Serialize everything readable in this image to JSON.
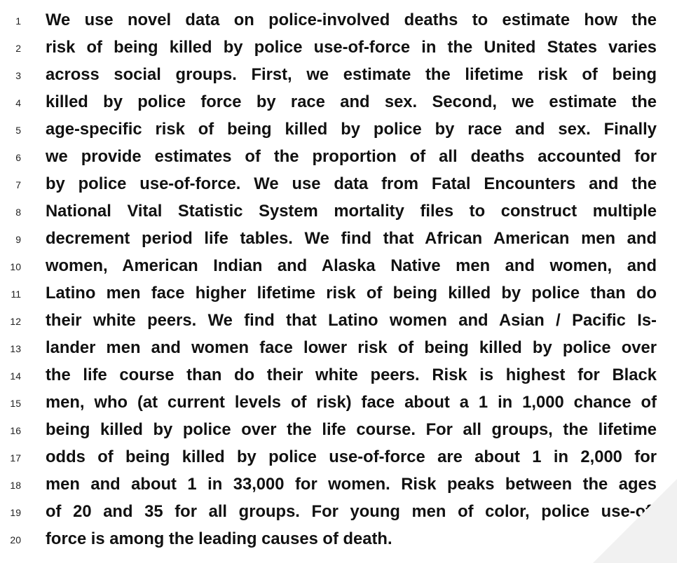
{
  "abstract": {
    "lines": [
      {
        "number": "1",
        "text": "We use novel data on police-involved deaths to estimate how the"
      },
      {
        "number": "2",
        "text": "risk of being killed by police use-of-force in the United States varies"
      },
      {
        "number": "3",
        "text": "across social groups.  First, we estimate the lifetime risk of being"
      },
      {
        "number": "4",
        "text": "killed by police force by race and sex.  Second, we estimate the"
      },
      {
        "number": "5",
        "text": "age-specific risk of being killed by police by race and sex.  Finally"
      },
      {
        "number": "6",
        "text": "we provide estimates of the proportion of all deaths accounted for"
      },
      {
        "number": "7",
        "text": "by police use-of-force.  We use data from Fatal Encounters and the"
      },
      {
        "number": "8",
        "text": "National Vital Statistic System mortality files to construct multiple"
      },
      {
        "number": "9",
        "text": "decrement period life tables. We find that African American men and"
      },
      {
        "number": "10",
        "text": "women, American Indian and Alaska Native men and women, and"
      },
      {
        "number": "11",
        "text": "Latino men face higher lifetime risk of being killed by police than do"
      },
      {
        "number": "12",
        "text": "their white peers.  We find that Latino women and Asian / Pacific Is-"
      },
      {
        "number": "13",
        "text": "lander men and women face lower risk of being killed by police over"
      },
      {
        "number": "14",
        "text": "the life course than do their white peers.  Risk is highest for Black"
      },
      {
        "number": "15",
        "text": "men, who (at current levels of risk) face about a 1 in 1,000 chance of"
      },
      {
        "number": "16",
        "text": "being killed by police over the life course. For all groups, the lifetime"
      },
      {
        "number": "17",
        "text": "odds of being killed by police use-of-force are about 1 in 2,000 for"
      },
      {
        "number": "18",
        "text": "men and about 1 in 33,000 for women. Risk peaks between the ages"
      },
      {
        "number": "19",
        "text": "of 20 and 35 for all groups.  For young men of color, police use-of-"
      },
      {
        "number": "20",
        "text": "force is among the leading causes of death."
      }
    ]
  }
}
